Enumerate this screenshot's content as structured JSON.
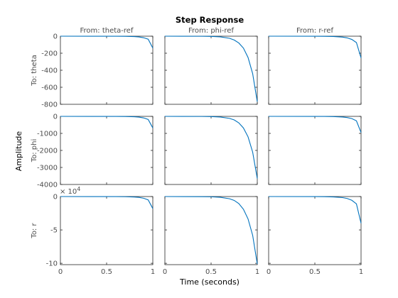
{
  "chart_data": {
    "type": "line",
    "title": "Step Response",
    "xlabel": "Time (seconds)",
    "ylabel": "Amplitude",
    "line_color": "#0072BD",
    "xlim": [
      0,
      1
    ],
    "xticks": [
      0,
      0.5,
      1
    ],
    "xtick_labels": [
      "0",
      "0.5",
      "1"
    ],
    "columns": [
      {
        "label": "From: theta-ref"
      },
      {
        "label": "From: phi-ref"
      },
      {
        "label": "From: r-ref"
      }
    ],
    "rows": [
      {
        "label": "To: theta",
        "ylim": [
          -800,
          0
        ],
        "yticks": [
          0,
          -200,
          -400,
          -600,
          -800
        ],
        "ytick_labels": [
          "0",
          "-200",
          "-400",
          "-600",
          "-800"
        ],
        "exponent_label": ""
      },
      {
        "label": "To: phi",
        "ylim": [
          -4000,
          0
        ],
        "yticks": [
          0,
          -1000,
          -2000,
          -3000,
          -4000
        ],
        "ytick_labels": [
          "0",
          "-1000",
          "-2000",
          "-3000",
          "-4000"
        ],
        "exponent_label": ""
      },
      {
        "label": "To: r",
        "ylim": [
          -102000,
          0
        ],
        "yticks": [
          0,
          -50000,
          -100000
        ],
        "ytick_labels": [
          "0",
          "-5",
          "-10"
        ],
        "exponent_label": "× 10^4"
      }
    ],
    "series": [
      {
        "row": 0,
        "col": 0,
        "x": [
          0,
          0.5,
          0.6,
          0.7,
          0.8,
          0.85,
          0.9,
          0.95,
          1.0
        ],
        "y": [
          0,
          -0.2,
          -0.6,
          -1.7,
          -5,
          -9,
          -18,
          -35,
          -140
        ]
      },
      {
        "row": 0,
        "col": 1,
        "x": [
          0,
          0.4,
          0.5,
          0.6,
          0.7,
          0.75,
          0.8,
          0.85,
          0.9,
          0.95,
          1.0
        ],
        "y": [
          0,
          -1,
          -3,
          -8,
          -25,
          -45,
          -80,
          -140,
          -250,
          -440,
          -770
        ]
      },
      {
        "row": 0,
        "col": 2,
        "x": [
          0,
          0.5,
          0.6,
          0.7,
          0.8,
          0.85,
          0.9,
          0.95,
          1.0
        ],
        "y": [
          0,
          -0.4,
          -1.2,
          -3.5,
          -11,
          -20,
          -38,
          -75,
          -255
        ]
      },
      {
        "row": 1,
        "col": 0,
        "x": [
          0,
          0.5,
          0.6,
          0.7,
          0.8,
          0.85,
          0.9,
          0.95,
          1.0
        ],
        "y": [
          0,
          -1,
          -3,
          -9,
          -25,
          -45,
          -90,
          -180,
          -680
        ]
      },
      {
        "row": 1,
        "col": 1,
        "x": [
          0,
          0.4,
          0.5,
          0.6,
          0.7,
          0.75,
          0.8,
          0.85,
          0.9,
          0.95,
          1.0
        ],
        "y": [
          0,
          -5,
          -14,
          -40,
          -120,
          -210,
          -380,
          -680,
          -1200,
          -2100,
          -3650
        ]
      },
      {
        "row": 1,
        "col": 2,
        "x": [
          0,
          0.5,
          0.6,
          0.7,
          0.8,
          0.85,
          0.9,
          0.95,
          1.0
        ],
        "y": [
          0,
          -1.5,
          -4.5,
          -13,
          -38,
          -70,
          -130,
          -260,
          -950
        ]
      },
      {
        "row": 2,
        "col": 0,
        "x": [
          0,
          0.5,
          0.6,
          0.7,
          0.8,
          0.85,
          0.9,
          0.95,
          1.0
        ],
        "y": [
          0,
          -30,
          -90,
          -250,
          -700,
          -1300,
          -2500,
          -5000,
          -18000
        ]
      },
      {
        "row": 2,
        "col": 1,
        "x": [
          0,
          0.4,
          0.5,
          0.6,
          0.7,
          0.75,
          0.8,
          0.85,
          0.9,
          0.95,
          1.0
        ],
        "y": [
          0,
          -150,
          -400,
          -1100,
          -3300,
          -5800,
          -10500,
          -19000,
          -33500,
          -58000,
          -101000
        ]
      },
      {
        "row": 2,
        "col": 2,
        "x": [
          0,
          0.5,
          0.6,
          0.7,
          0.8,
          0.85,
          0.9,
          0.95,
          1.0
        ],
        "y": [
          0,
          -70,
          -200,
          -560,
          -1600,
          -2900,
          -5600,
          -11000,
          -40000
        ]
      }
    ]
  }
}
